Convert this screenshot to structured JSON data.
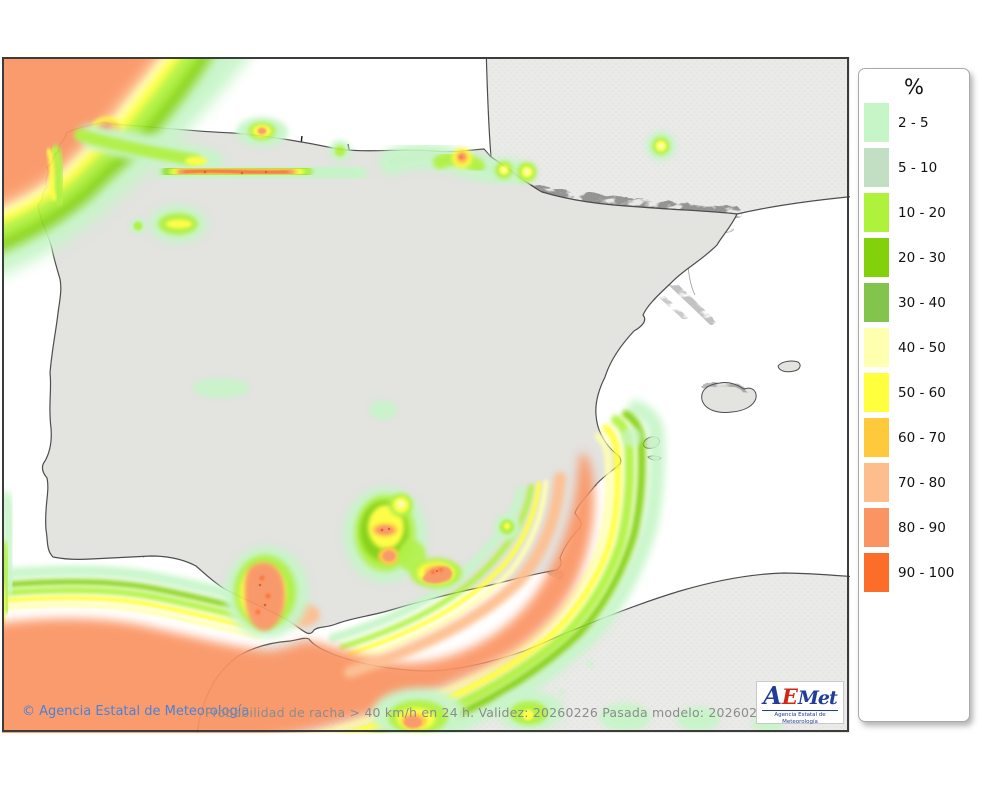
{
  "legend": {
    "title": "%",
    "items": [
      {
        "range": "2 - 5",
        "color": "#c6f5c7"
      },
      {
        "range": "5 - 10",
        "color": "#c2dfc4"
      },
      {
        "range": "10 - 20",
        "color": "#aff23c"
      },
      {
        "range": "20 - 30",
        "color": "#82d10a"
      },
      {
        "range": "30 - 40",
        "color": "#82c44c"
      },
      {
        "range": "40 - 50",
        "color": "#ffffb0"
      },
      {
        "range": "50 - 60",
        "color": "#ffff3d"
      },
      {
        "range": "60 - 70",
        "color": "#ffc93c"
      },
      {
        "range": "70 - 80",
        "color": "#fdbd8d"
      },
      {
        "range": "80 - 90",
        "color": "#fa9463"
      },
      {
        "range": "90 - 100",
        "color": "#fc6d2a"
      }
    ]
  },
  "footer": {
    "copyright": "© Agencia Estatal de Meteorología",
    "product_info": "Probabilidad de racha > 40 km/h en 24 h. Validez: 20260226 Pasada modelo: 2026022600"
  },
  "logo": {
    "letter_a": "A",
    "letter_e": "E",
    "letters_rest": "Met",
    "subtitle": "Agencia Estatal de Meteorología"
  },
  "palette": {
    "c1": "#c6f5c7",
    "c2": "#c2dfc4",
    "c3": "#aff23c",
    "c4": "#82d10a",
    "c5": "#82c44c",
    "c6": "#ffffb0",
    "c7": "#ffff3d",
    "c8": "#ffc93c",
    "c9": "#fdbd8d",
    "c10": "#fa9463",
    "c11": "#fc6d2a",
    "speck": "#e0551c",
    "sea": "#ffffff",
    "land": "#e3e3e0",
    "outside_land": "#eaeae8",
    "coast": "#4d4d4d",
    "region_border": "#161616",
    "province_border": "#9b9b9b",
    "frame": "#3c3c3c",
    "copyright_color": "#4a82d4",
    "product_color": "#8c8c8c"
  }
}
